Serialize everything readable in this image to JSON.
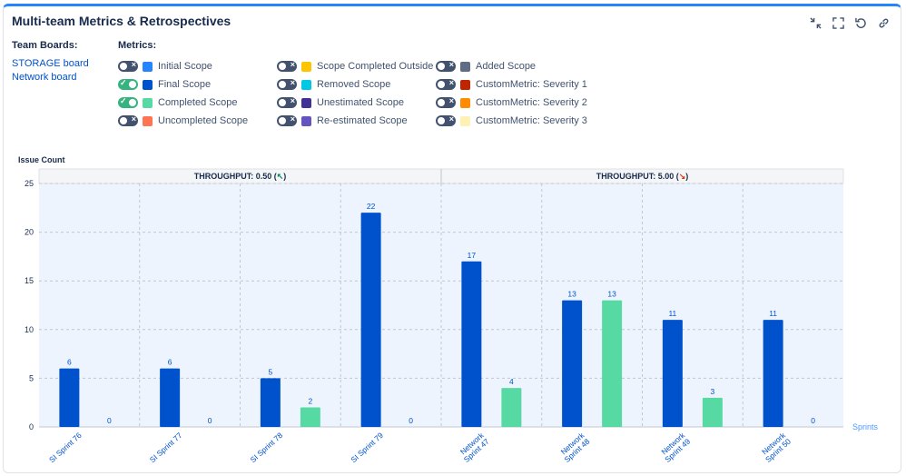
{
  "header": {
    "title": "Multi-team Metrics & Retrospectives"
  },
  "toolbar": [
    "collapse-icon",
    "fullscreen-icon",
    "refresh-icon",
    "link-icon"
  ],
  "boards": {
    "heading": "Team Boards:",
    "items": [
      "STORAGE board",
      "Network board"
    ]
  },
  "metrics": {
    "heading": "Metrics:",
    "items": [
      {
        "label": "Initial Scope",
        "enabled": false,
        "color": "#2684ff"
      },
      {
        "label": "Final Scope",
        "enabled": true,
        "color": "#0052cc"
      },
      {
        "label": "Completed Scope",
        "enabled": true,
        "color": "#57d9a3"
      },
      {
        "label": "Uncompleted Scope",
        "enabled": false,
        "color": "#ff7452"
      },
      {
        "label": "Scope Completed Outside",
        "enabled": false,
        "color": "#ffc400"
      },
      {
        "label": "Removed Scope",
        "enabled": false,
        "color": "#00c7e6"
      },
      {
        "label": "Unestimated Scope",
        "enabled": false,
        "color": "#403294"
      },
      {
        "label": "Re-estimated Scope",
        "enabled": false,
        "color": "#6554c0"
      },
      {
        "label": "Added Scope",
        "enabled": false,
        "color": "#5e6c84"
      },
      {
        "label": "CustomMetric: Severity 1",
        "enabled": false,
        "color": "#bf2600"
      },
      {
        "label": "CustomMetric: Severity 2",
        "enabled": false,
        "color": "#ff8b00"
      },
      {
        "label": "CustomMetric: Severity 3",
        "enabled": false,
        "color": "#fff0b3"
      }
    ]
  },
  "chart_data": {
    "type": "bar",
    "ylabel": "Issue Count",
    "xlabel": "Sprints",
    "ylim": [
      0,
      25
    ],
    "yticks": [
      0,
      5,
      10,
      15,
      20,
      25
    ],
    "grid": true,
    "groups": [
      {
        "label": "THROUGHPUT: 0.50 (",
        "arrow": "↖",
        "arrow_color": "#00875a",
        "suffix": ")"
      },
      {
        "label": "THROUGHPUT: 5.00 (",
        "arrow": "↘",
        "arrow_color": "#de350b",
        "suffix": ")"
      }
    ],
    "categories": [
      "SI Sprint 76",
      "SI Sprint 77",
      "SI Sprint 78",
      "SI Sprint 79",
      "Network Sprint 47",
      "Network Sprint 48",
      "Network Sprint 49",
      "Network Sprint 50"
    ],
    "category_lines": [
      [
        "SI Sprint 76"
      ],
      [
        "SI Sprint 77"
      ],
      [
        "SI Sprint 78"
      ],
      [
        "SI Sprint 79"
      ],
      [
        "Network",
        "Sprint 47"
      ],
      [
        "Network",
        "Sprint 48"
      ],
      [
        "Network",
        "Sprint 49"
      ],
      [
        "Network",
        "Sprint 50"
      ]
    ],
    "series": [
      {
        "name": "Final Scope",
        "color": "#0052cc",
        "values": [
          6,
          6,
          5,
          22,
          17,
          13,
          11,
          11
        ]
      },
      {
        "name": "Completed Scope",
        "color": "#57d9a3",
        "values": [
          0,
          0,
          2,
          0,
          4,
          13,
          3,
          0
        ]
      }
    ]
  }
}
